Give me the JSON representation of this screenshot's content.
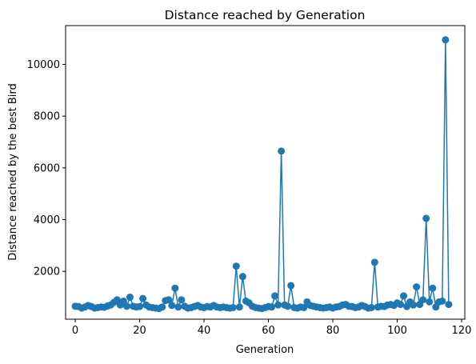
{
  "chart_data": {
    "type": "line",
    "title": "Distance reached by Generation",
    "xlabel": "Generation",
    "ylabel": "Distance reached by the best Bird",
    "xlim": [
      -3,
      121
    ],
    "ylim": [
      150,
      11500
    ],
    "xticks": [
      0,
      20,
      40,
      60,
      80,
      100,
      120
    ],
    "yticks": [
      2000,
      4000,
      6000,
      8000,
      10000
    ],
    "grid": false,
    "series_color": "#1f77b4",
    "x": [
      0,
      1,
      2,
      3,
      4,
      5,
      6,
      7,
      8,
      9,
      10,
      11,
      12,
      13,
      14,
      15,
      16,
      17,
      18,
      19,
      20,
      21,
      22,
      23,
      24,
      25,
      26,
      27,
      28,
      29,
      30,
      31,
      32,
      33,
      34,
      35,
      36,
      37,
      38,
      39,
      40,
      41,
      42,
      43,
      44,
      45,
      46,
      47,
      48,
      49,
      50,
      51,
      52,
      53,
      54,
      55,
      56,
      57,
      58,
      59,
      60,
      61,
      62,
      63,
      64,
      65,
      66,
      67,
      68,
      69,
      70,
      71,
      72,
      73,
      74,
      75,
      76,
      77,
      78,
      79,
      80,
      81,
      82,
      83,
      84,
      85,
      86,
      87,
      88,
      89,
      90,
      91,
      92,
      93,
      94,
      95,
      96,
      97,
      98,
      99,
      100,
      101,
      102,
      103,
      104,
      105,
      106,
      107,
      108,
      109,
      110,
      111,
      112,
      113,
      114,
      115,
      116
    ],
    "values": [
      650,
      640,
      580,
      620,
      680,
      640,
      580,
      600,
      620,
      610,
      660,
      700,
      800,
      900,
      700,
      850,
      650,
      1000,
      650,
      620,
      640,
      950,
      700,
      620,
      600,
      580,
      560,
      620,
      870,
      900,
      680,
      1350,
      620,
      900,
      650,
      580,
      600,
      640,
      680,
      620,
      600,
      640,
      620,
      680,
      620,
      600,
      620,
      600,
      580,
      600,
      2200,
      620,
      1800,
      850,
      780,
      650,
      600,
      580,
      560,
      600,
      640,
      620,
      1050,
      700,
      6650,
      700,
      650,
      1450,
      600,
      580,
      620,
      600,
      820,
      680,
      650,
      620,
      600,
      580,
      600,
      620,
      580,
      620,
      640,
      700,
      720,
      650,
      640,
      600,
      620,
      680,
      640,
      580,
      600,
      2350,
      620,
      650,
      640,
      700,
      720,
      680,
      780,
      720,
      1050,
      640,
      820,
      700,
      1400,
      720,
      900,
      4050,
      820,
      1350,
      620,
      820,
      850,
      10950,
      720
    ]
  }
}
